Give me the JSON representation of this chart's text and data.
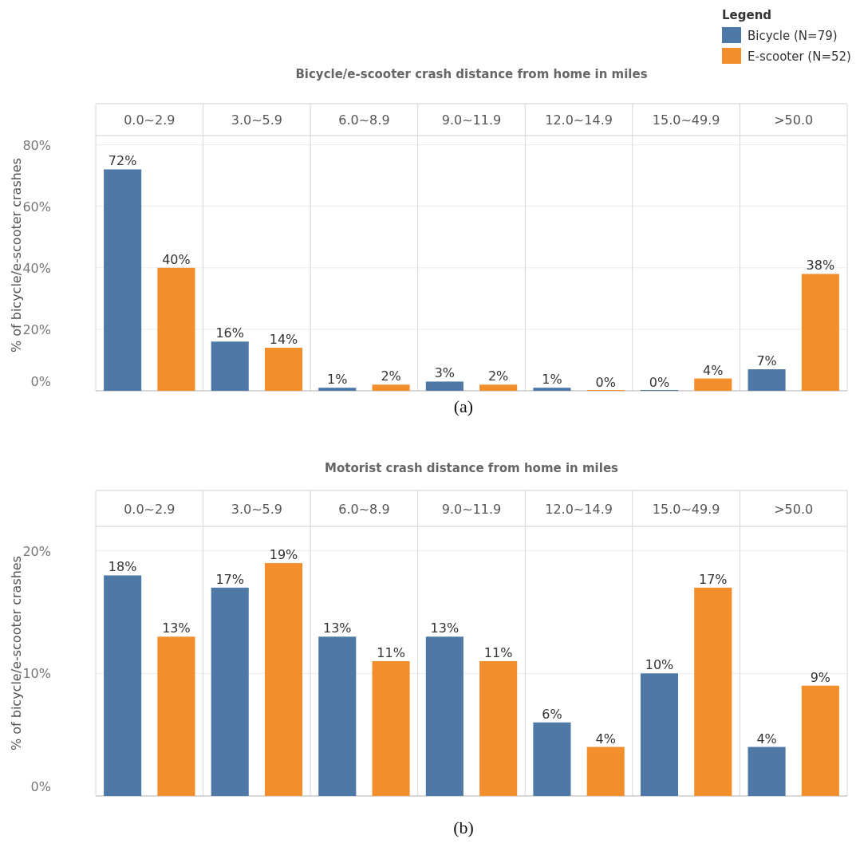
{
  "chart_data": [
    {
      "type": "bar",
      "title": "Bicycle/e-scooter crash distance from home in miles",
      "ylabel": "% of bicycle/e-scooter crashes",
      "legend_title": "Legend",
      "legend": "top right",
      "grid": "y",
      "categories": [
        "0.0~2.9",
        "3.0~5.9",
        "6.0~8.9",
        "9.0~11.9",
        "12.0~14.9",
        "15.0~49.9",
        ">50.0"
      ],
      "ylim": [
        0,
        83
      ],
      "yticks": [
        {
          "value": 0,
          "label": "0%"
        },
        {
          "value": 20,
          "label": "20%"
        },
        {
          "value": 40,
          "label": "40%"
        },
        {
          "value": 60,
          "label": "60%"
        },
        {
          "value": 80,
          "label": "80%"
        }
      ],
      "series": [
        {
          "name": "Bicycle (N=79)",
          "color": "#4e79a7",
          "values": [
            72,
            16,
            1,
            3,
            1,
            0,
            7
          ],
          "value_labels": [
            "72%",
            "16%",
            "1%",
            "3%",
            "1%",
            "0%",
            "7%"
          ]
        },
        {
          "name": "E-scooter (N=52)",
          "color": "#f28e2b",
          "values": [
            40,
            14,
            2,
            2,
            0,
            4,
            38
          ],
          "value_labels": [
            "40%",
            "14%",
            "2%",
            "2%",
            "0%",
            "4%",
            "38%"
          ]
        }
      ],
      "annotations": [
        "(a)"
      ]
    },
    {
      "type": "bar",
      "title": "Motorist crash distance from home in miles",
      "ylabel": "% of bicycle/e-scooter crashes",
      "grid": "y",
      "categories": [
        "0.0~2.9",
        "3.0~5.9",
        "6.0~8.9",
        "9.0~11.9",
        "12.0~14.9",
        "15.0~49.9",
        ">50.0"
      ],
      "ylim": [
        0,
        22
      ],
      "yticks": [
        {
          "value": 0,
          "label": "0%"
        },
        {
          "value": 10,
          "label": "10%"
        },
        {
          "value": 20,
          "label": "20%"
        }
      ],
      "series": [
        {
          "color": "#4e79a7",
          "values": [
            18,
            17,
            13,
            13,
            6,
            10,
            4
          ],
          "value_labels": [
            "18%",
            "17%",
            "13%",
            "13%",
            "6%",
            "10%",
            "4%"
          ]
        },
        {
          "color": "#f28e2b",
          "values": [
            13,
            19,
            11,
            11,
            4,
            17,
            9
          ],
          "value_labels": [
            "13%",
            "19%",
            "11%",
            "11%",
            "4%",
            "17%",
            "9%"
          ]
        }
      ],
      "annotations": [
        "(b)"
      ]
    }
  ]
}
